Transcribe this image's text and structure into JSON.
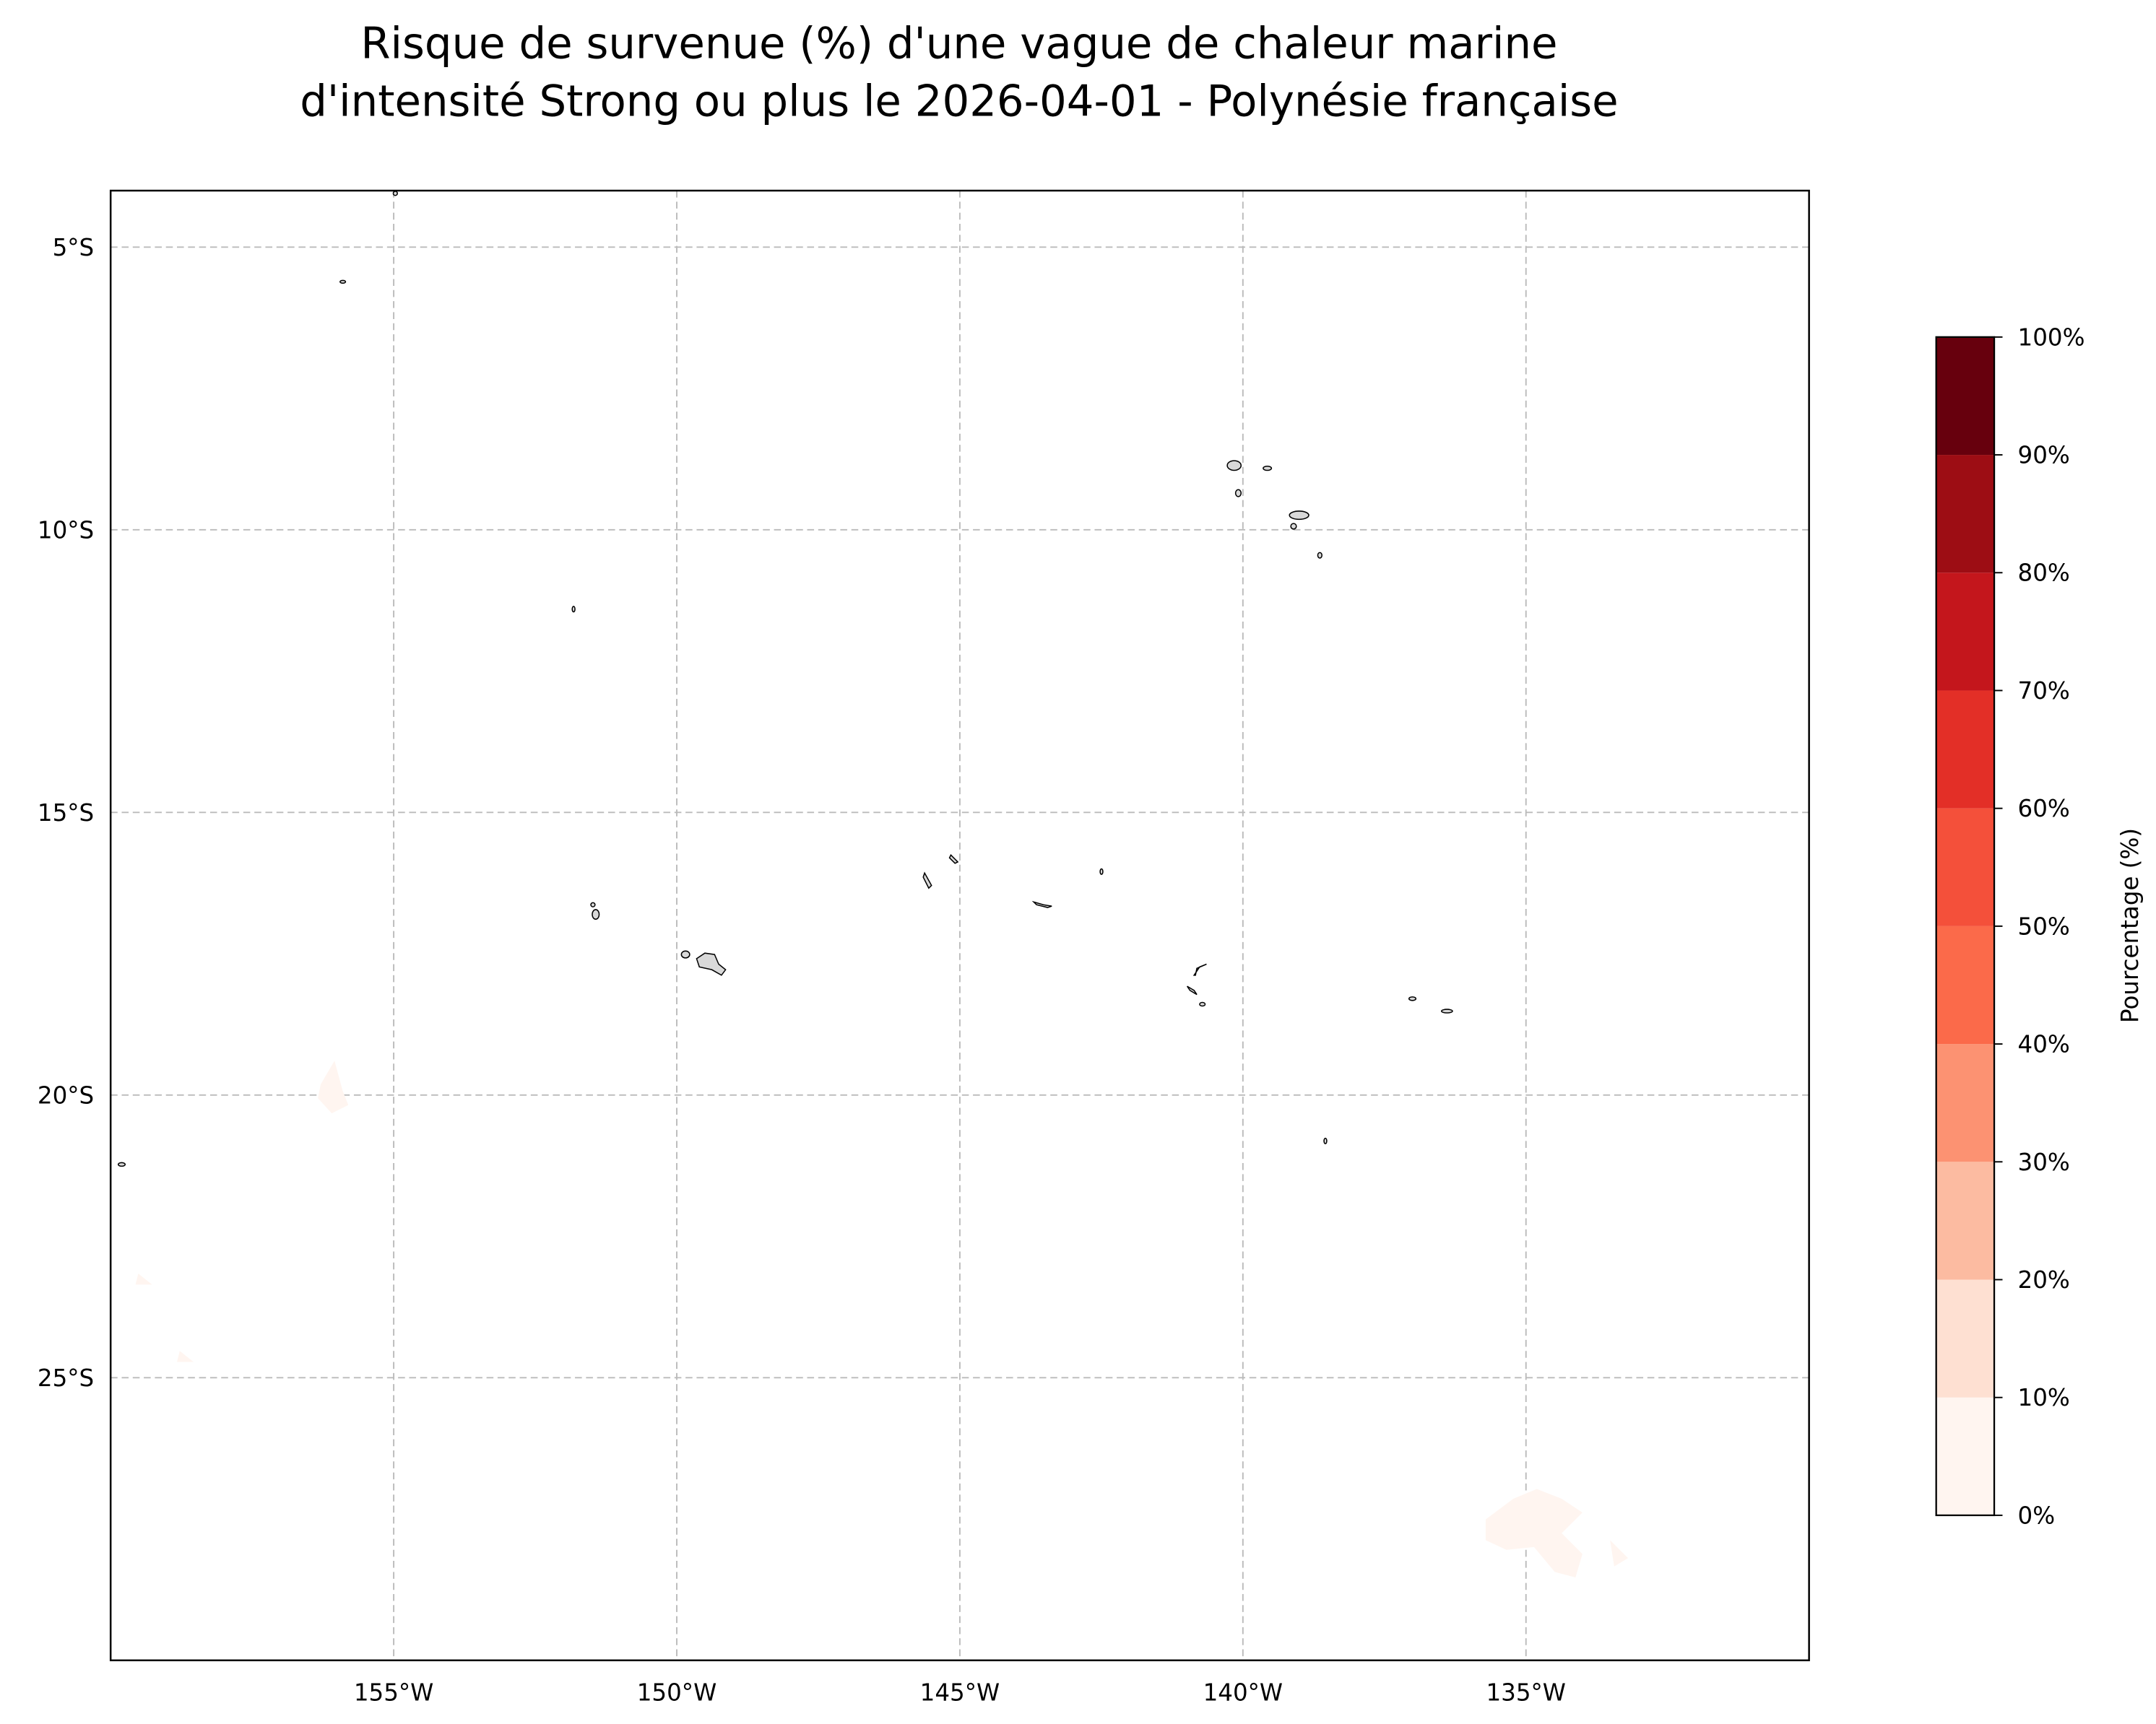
{
  "chart_data": {
    "type": "map",
    "title": [
      "Risque de survenue (%) d'une vague de chaleur marine",
      "d'intensité Strong ou plus le 2026-04-01 - Polynésie française"
    ],
    "xlim": [
      -160,
      -130
    ],
    "ylim": [
      -30,
      -4
    ],
    "xticks": [
      {
        "value": -155,
        "label": "155°W"
      },
      {
        "value": -150,
        "label": "150°W"
      },
      {
        "value": -145,
        "label": "145°W"
      },
      {
        "value": -140,
        "label": "140°W"
      },
      {
        "value": -135,
        "label": "135°W"
      }
    ],
    "yticks": [
      {
        "value": -5,
        "label": "5°S"
      },
      {
        "value": -10,
        "label": "10°S"
      },
      {
        "value": -15,
        "label": "15°S"
      },
      {
        "value": -20,
        "label": "20°S"
      },
      {
        "value": -25,
        "label": "25°S"
      }
    ],
    "grid": true,
    "colorbar": {
      "label": "Pourcentage (%)",
      "lim": [
        0,
        100
      ],
      "ticks": [
        {
          "value": 0,
          "label": "0%"
        },
        {
          "value": 10,
          "label": "10%"
        },
        {
          "value": 20,
          "label": "20%"
        },
        {
          "value": 30,
          "label": "30%"
        },
        {
          "value": 40,
          "label": "40%"
        },
        {
          "value": 50,
          "label": "50%"
        },
        {
          "value": 60,
          "label": "60%"
        },
        {
          "value": 70,
          "label": "70%"
        },
        {
          "value": 80,
          "label": "80%"
        },
        {
          "value": 90,
          "label": "90%"
        },
        {
          "value": 100,
          "label": "100%"
        }
      ],
      "colors": [
        "#fff5f0",
        "#fee0d2",
        "#fcbba1",
        "#fc9272",
        "#fb6a4a",
        "#f4503a",
        "#e32f27",
        "#c4161c",
        "#9d0d14",
        "#67000d"
      ]
    }
  }
}
